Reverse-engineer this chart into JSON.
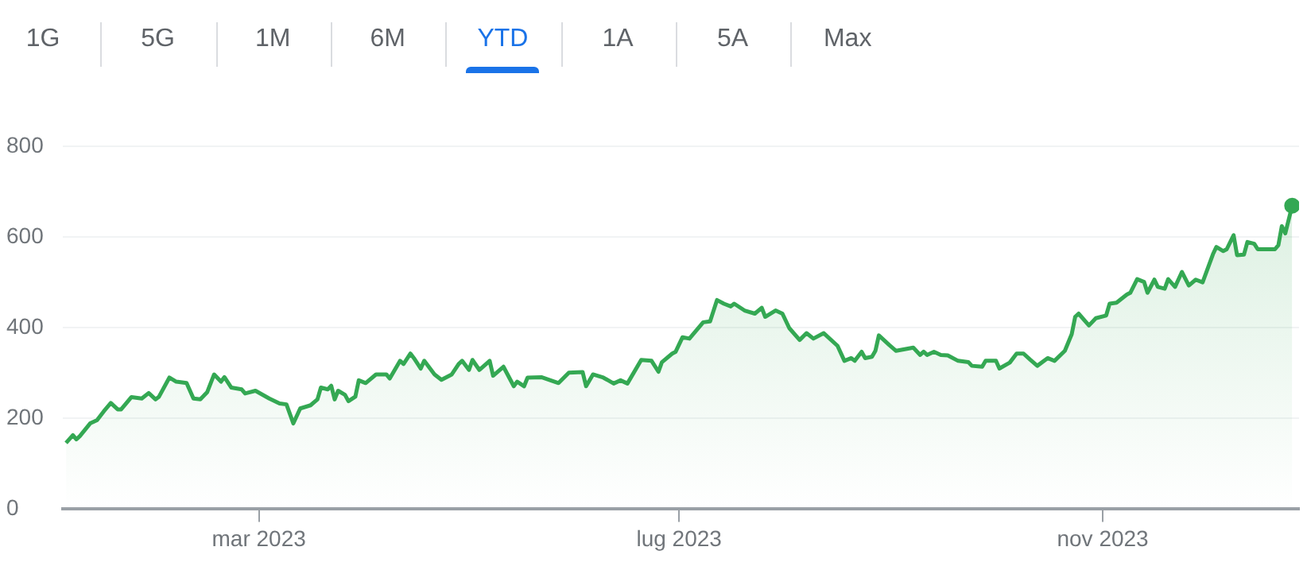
{
  "chart_data": {
    "type": "area",
    "annotations": [
      "1G",
      "5G",
      "1M",
      "6M",
      "YTD",
      "1A",
      "5A",
      "Max"
    ],
    "x": [
      "2023-01-04",
      "2023-01-06",
      "2023-01-07",
      "2023-01-08",
      "2023-01-11",
      "2023-01-13",
      "2023-01-15",
      "2023-01-17",
      "2023-01-19",
      "2023-01-20",
      "2023-01-23",
      "2023-01-26",
      "2023-01-28",
      "2023-01-30",
      "2023-01-31",
      "2023-02-03",
      "2023-02-05",
      "2023-02-08",
      "2023-02-10",
      "2023-02-12",
      "2023-02-14",
      "2023-02-16",
      "2023-02-18",
      "2023-02-19",
      "2023-02-21",
      "2023-02-24",
      "2023-02-25",
      "2023-02-28",
      "2023-03-04",
      "2023-03-07",
      "2023-03-09",
      "2023-03-11",
      "2023-03-13",
      "2023-03-16",
      "2023-03-18",
      "2023-03-19",
      "2023-03-21",
      "2023-03-22",
      "2023-03-23",
      "2023-03-24",
      "2023-03-26",
      "2023-03-27",
      "2023-03-29",
      "2023-03-30",
      "2023-04-01",
      "2023-04-04",
      "2023-04-07",
      "2023-04-08",
      "2023-04-11",
      "2023-04-12",
      "2023-04-14",
      "2023-04-15",
      "2023-04-17",
      "2023-04-18",
      "2023-04-21",
      "2023-04-23",
      "2023-04-26",
      "2023-04-28",
      "2023-04-29",
      "2023-05-01",
      "2023-05-02",
      "2023-05-04",
      "2023-05-07",
      "2023-05-08",
      "2023-05-11",
      "2023-05-14",
      "2023-05-15",
      "2023-05-17",
      "2023-05-18",
      "2023-05-22",
      "2023-05-27",
      "2023-05-30",
      "2023-06-03",
      "2023-06-04",
      "2023-06-06",
      "2023-06-09",
      "2023-06-12",
      "2023-06-14",
      "2023-06-16",
      "2023-06-20",
      "2023-06-23",
      "2023-06-25",
      "2023-06-26",
      "2023-06-29",
      "2023-06-30",
      "2023-07-02",
      "2023-07-04",
      "2023-07-08",
      "2023-07-10",
      "2023-07-12",
      "2023-07-14",
      "2023-07-16",
      "2023-07-17",
      "2023-07-20",
      "2023-07-23",
      "2023-07-25",
      "2023-07-26",
      "2023-07-29",
      "2023-07-31",
      "2023-08-02",
      "2023-08-05",
      "2023-08-07",
      "2023-08-09",
      "2023-08-12",
      "2023-08-16",
      "2023-08-18",
      "2023-08-20",
      "2023-08-21",
      "2023-08-23",
      "2023-08-24",
      "2023-08-26",
      "2023-08-27",
      "2023-08-28",
      "2023-08-31",
      "2023-09-02",
      "2023-09-07",
      "2023-09-09",
      "2023-09-10",
      "2023-09-11",
      "2023-09-13",
      "2023-09-15",
      "2023-09-17",
      "2023-09-20",
      "2023-09-23",
      "2023-09-24",
      "2023-09-27",
      "2023-09-28",
      "2023-10-01",
      "2023-10-02",
      "2023-10-05",
      "2023-10-07",
      "2023-10-09",
      "2023-10-11",
      "2023-10-13",
      "2023-10-16",
      "2023-10-18",
      "2023-10-21",
      "2023-10-23",
      "2023-10-24",
      "2023-10-25",
      "2023-10-28",
      "2023-10-30",
      "2023-11-02",
      "2023-11-03",
      "2023-11-05",
      "2023-11-08",
      "2023-11-09",
      "2023-11-11",
      "2023-11-13",
      "2023-11-14",
      "2023-11-16",
      "2023-11-17",
      "2023-11-19",
      "2023-11-20",
      "2023-11-22",
      "2023-11-24",
      "2023-11-26",
      "2023-11-28",
      "2023-11-30",
      "2023-12-03",
      "2023-12-04",
      "2023-12-06",
      "2023-12-07",
      "2023-12-09",
      "2023-12-10",
      "2023-12-12",
      "2023-12-13",
      "2023-12-15",
      "2023-12-16",
      "2023-12-21",
      "2023-12-22",
      "2023-12-23",
      "2023-12-24",
      "2023-12-26"
    ],
    "series": [
      {
        "color": "#34a853",
        "values": [
          146,
          163,
          154,
          161,
          189,
          196,
          216,
          234,
          220,
          220,
          247,
          244,
          256,
          242,
          248,
          290,
          281,
          278,
          244,
          242,
          258,
          297,
          281,
          291,
          268,
          264,
          255,
          261,
          244,
          233,
          231,
          189,
          222,
          229,
          242,
          268,
          264,
          272,
          242,
          261,
          252,
          238,
          248,
          284,
          278,
          297,
          297,
          288,
          327,
          320,
          343,
          333,
          310,
          327,
          297,
          285,
          297,
          320,
          327,
          307,
          329,
          307,
          327,
          294,
          314,
          271,
          281,
          271,
          290,
          291,
          278,
          301,
          302,
          271,
          297,
          290,
          277,
          284,
          277,
          329,
          327,
          303,
          324,
          343,
          347,
          379,
          376,
          412,
          414,
          461,
          453,
          447,
          453,
          438,
          431,
          444,
          424,
          438,
          431,
          399,
          373,
          388,
          376,
          388,
          360,
          327,
          333,
          327,
          347,
          333,
          336,
          349,
          383,
          362,
          349,
          356,
          340,
          347,
          340,
          347,
          340,
          339,
          327,
          324,
          316,
          314,
          327,
          327,
          310,
          323,
          343,
          343,
          329,
          316,
          333,
          327,
          349,
          386,
          424,
          431,
          405,
          421,
          427,
          453,
          455,
          473,
          477,
          507,
          501,
          477,
          506,
          490,
          486,
          507,
          490,
          523,
          493,
          506,
          500,
          562,
          578,
          569,
          573,
          604,
          560,
          561,
          589,
          585,
          573,
          573,
          582,
          624,
          608,
          669
        ]
      }
    ],
    "xlim": [
      "2023-01-03",
      "2023-12-28"
    ],
    "xticks": [
      {
        "value": "2023-03-01",
        "label": "mar 2023"
      },
      {
        "value": "2023-07-01",
        "label": "lug 2023"
      },
      {
        "value": "2023-11-01",
        "label": "nov 2023"
      }
    ],
    "ylim": [
      0,
      800
    ],
    "yticks": [
      0,
      200,
      400,
      600,
      800
    ],
    "grid": "y"
  }
}
